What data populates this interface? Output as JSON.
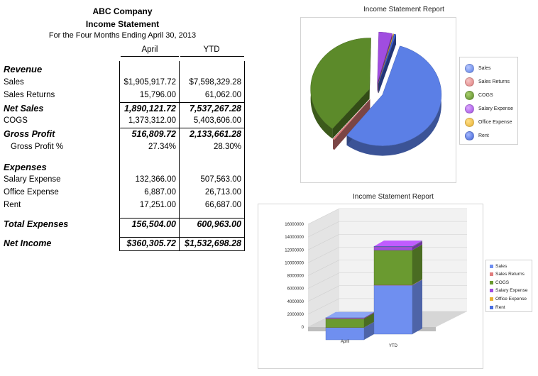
{
  "statement": {
    "company": "ABC Company",
    "title": "Income Statement",
    "period": "For the Four Months Ending April 30, 2013",
    "columns": {
      "april": "April",
      "ytd": "YTD"
    },
    "revenue_header": "Revenue",
    "sales": {
      "label": "Sales",
      "april": "$1,905,917.72",
      "ytd": "$7,598,329.28"
    },
    "sales_returns": {
      "label": "Sales Returns",
      "april": "15,796.00",
      "ytd": "61,062.00"
    },
    "net_sales": {
      "label": "Net Sales",
      "april": "1,890,121.72",
      "ytd": "7,537,267.28"
    },
    "cogs": {
      "label": "COGS",
      "april": "1,373,312.00",
      "ytd": "5,403,606.00"
    },
    "gross_profit": {
      "label": "Gross Profit",
      "april": "516,809.72",
      "ytd": "2,133,661.28"
    },
    "gross_profit_pct": {
      "label": "Gross Profit %",
      "april": "27.34%",
      "ytd": "28.30%"
    },
    "expenses_header": "Expenses",
    "salary_expense": {
      "label": "Salary Expense",
      "april": "132,366.00",
      "ytd": "507,563.00"
    },
    "office_expense": {
      "label": "Office Expense",
      "april": "6,887.00",
      "ytd": "26,713.00"
    },
    "rent": {
      "label": "Rent",
      "april": "17,251.00",
      "ytd": "66,687.00"
    },
    "total_expenses": {
      "label": "Total Expenses",
      "april": "156,504.00",
      "ytd": "600,963.00"
    },
    "net_income": {
      "label": "Net Income",
      "april": "$360,305.72",
      "ytd": "$1,532,698.28"
    }
  },
  "chart_data": [
    {
      "type": "pie",
      "title": "Income Statement Report",
      "legend_position": "right",
      "categories": [
        "Sales",
        "Sales Returns",
        "COGS",
        "Salary Expense",
        "Office Expense",
        "Rent"
      ],
      "values": [
        7598329.28,
        61062.0,
        5403606.0,
        507563.0,
        26713.0,
        66687.0
      ],
      "colors": [
        "#5b7fe6",
        "#e07d7d",
        "#5c8a2a",
        "#a04de0",
        "#e8b030",
        "#3f62d6"
      ]
    },
    {
      "type": "bar",
      "stacked": true,
      "title": "Income Statement Report",
      "legend_position": "right",
      "categories": [
        "April",
        "YTD"
      ],
      "series": [
        {
          "name": "Sales",
          "values": [
            1905917.72,
            7598329.28
          ]
        },
        {
          "name": "Sales Returns",
          "values": [
            15796.0,
            61062.0
          ]
        },
        {
          "name": "COGS",
          "values": [
            1373312.0,
            5403606.0
          ]
        },
        {
          "name": "Salary Expense",
          "values": [
            132366.0,
            507563.0
          ]
        },
        {
          "name": "Office Expense",
          "values": [
            6887.0,
            26713.0
          ]
        },
        {
          "name": "Rent",
          "values": [
            17251.0,
            66687.0
          ]
        }
      ],
      "colors": [
        "#6f8ff0",
        "#e07d7d",
        "#6a9a30",
        "#a04de0",
        "#e8b030",
        "#4a6ee0"
      ],
      "ylim": [
        0,
        16000000
      ],
      "yticks": [
        "16000000",
        "14000000",
        "12000000",
        "10000000",
        "8000000",
        "6000000",
        "4000000",
        "2000000",
        "0"
      ]
    }
  ]
}
